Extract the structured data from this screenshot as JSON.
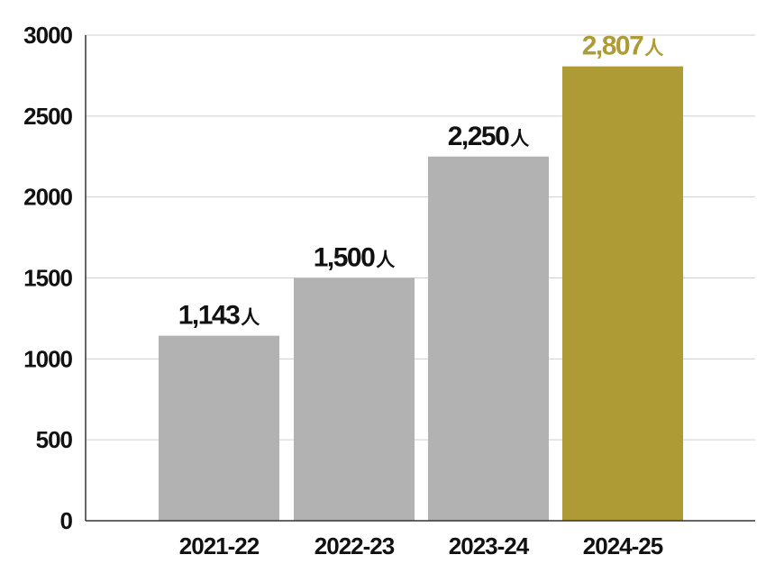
{
  "chart_data": {
    "type": "bar",
    "categories": [
      "2021-22",
      "2022-23",
      "2023-24",
      "2024-25"
    ],
    "values": [
      1143,
      1500,
      2250,
      2807
    ],
    "data_labels": [
      "1,143",
      "1,500",
      "2,250",
      "2,807"
    ],
    "unit": "人",
    "ylim": [
      0,
      3000
    ],
    "yticks": [
      0,
      500,
      1000,
      1500,
      2000,
      2500,
      3000
    ],
    "grid": true,
    "title": "",
    "xlabel": "",
    "ylabel": "",
    "colors": {
      "bar": "#b2b2b2",
      "highlight": "#ae9b35",
      "grid": "#cfcfcf",
      "axis": "#333333",
      "text": "#111111"
    },
    "highlight_index": 3
  }
}
